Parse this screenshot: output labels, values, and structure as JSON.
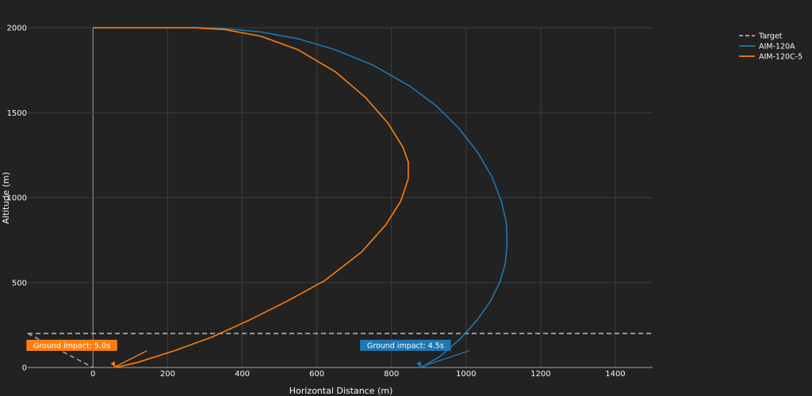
{
  "chart_data": {
    "type": "line",
    "xlabel": "Horizontal Distance (m)",
    "ylabel": "Altitude (m)",
    "xlim": [
      -175,
      1500
    ],
    "ylim": [
      0,
      2000
    ],
    "x_ticks": [
      0,
      200,
      400,
      600,
      800,
      1000,
      1200,
      1400
    ],
    "y_ticks": [
      0,
      500,
      1000,
      1500,
      2000
    ],
    "grid": true,
    "legend_position": "top-right",
    "series": [
      {
        "name": "Target",
        "color": "#b0b0b0",
        "dash": "dashed",
        "x": [
          -175,
          -150,
          -100,
          -50,
          0,
          50,
          100,
          200,
          400,
          600,
          800,
          1000,
          1200,
          1400,
          1500
        ],
        "y": [
          200,
          200,
          200,
          200,
          200,
          200,
          200,
          200,
          200,
          200,
          200,
          200,
          200,
          200,
          200
        ]
      },
      {
        "name": "AIM-120A",
        "color": "#1f77b4",
        "x": [
          0,
          100,
          200,
          280,
          350,
          450,
          550,
          650,
          750,
          850,
          920,
          980,
          1030,
          1070,
          1095,
          1108,
          1110,
          1105,
          1090,
          1065,
          1030,
          985,
          930,
          880
        ],
        "y": [
          2000,
          2000,
          2000,
          2000,
          1995,
          1975,
          1935,
          1870,
          1780,
          1655,
          1540,
          1410,
          1270,
          1120,
          975,
          850,
          730,
          610,
          500,
          390,
          280,
          170,
          65,
          0
        ]
      },
      {
        "name": "AIM-120C-5",
        "color": "#ff7f0e",
        "x": [
          0,
          100,
          200,
          270,
          350,
          450,
          550,
          650,
          730,
          790,
          830,
          845,
          845,
          825,
          785,
          720,
          620,
          520,
          420,
          320,
          220,
          120,
          60
        ],
        "y": [
          2000,
          2000,
          2000,
          2000,
          1990,
          1950,
          1870,
          1740,
          1590,
          1440,
          1300,
          1210,
          1110,
          980,
          840,
          680,
          510,
          390,
          280,
          180,
          100,
          30,
          0
        ]
      }
    ],
    "annotations": [
      {
        "text": "Ground impact: 5.0s",
        "x": 60,
        "y": 0,
        "color": "#ff7f0e"
      },
      {
        "text": "Ground impact: 4.5s",
        "x": 880,
        "y": 0,
        "color": "#1f77b4"
      }
    ]
  }
}
